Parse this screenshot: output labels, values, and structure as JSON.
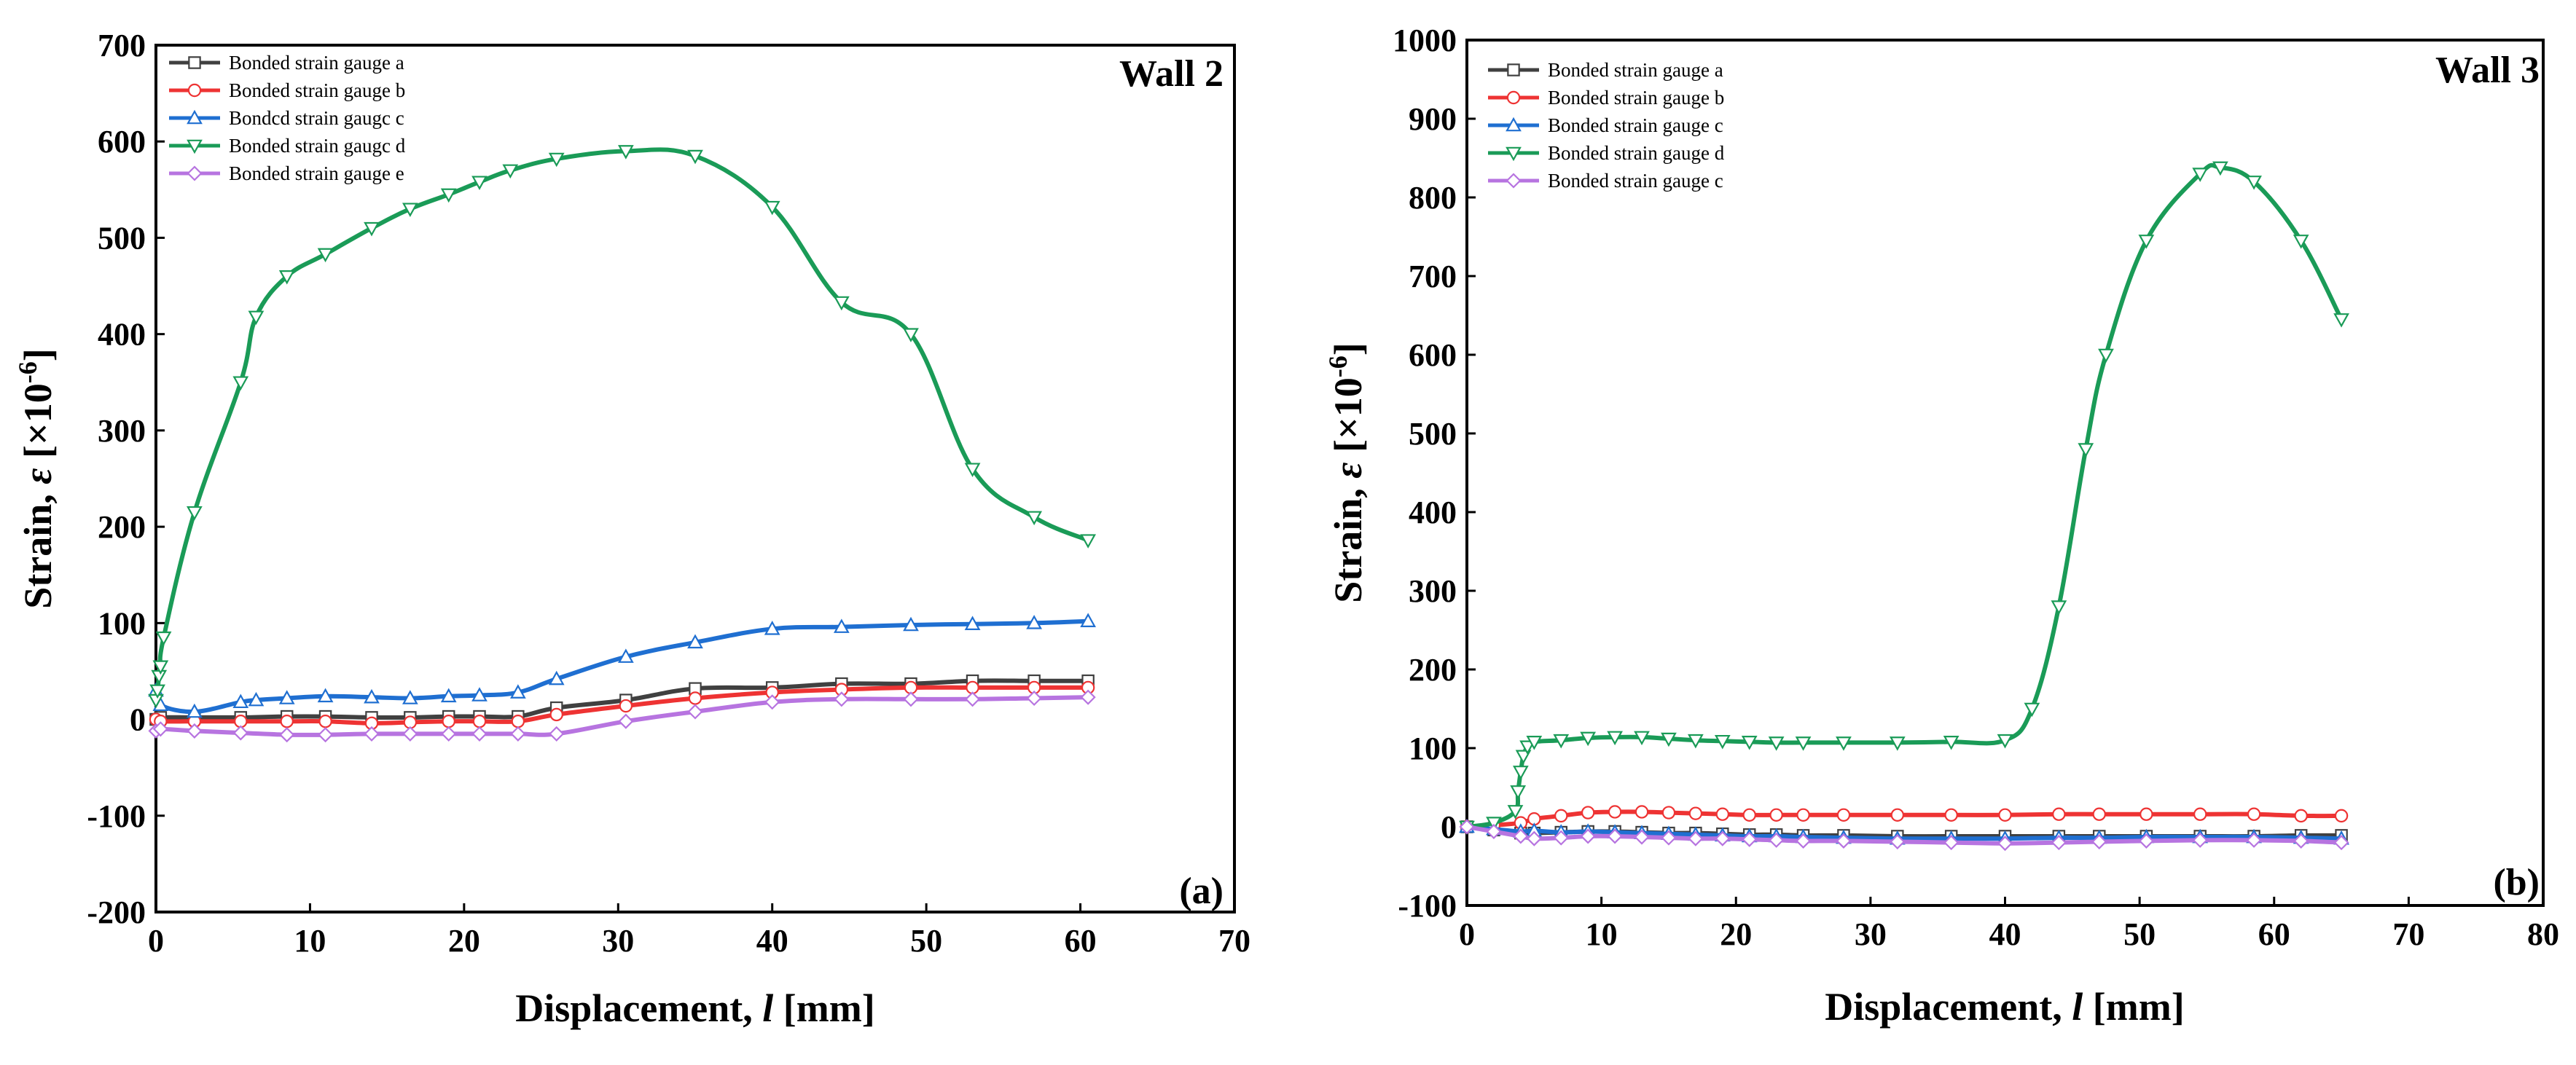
{
  "chart_data": [
    {
      "type": "line",
      "title": "Wall 2",
      "panel_label": "(a)",
      "xlabel_main": "Displacement, ",
      "xlabel_var": "l",
      "xlabel_unit": " [mm]",
      "ylabel_main": "Strain, ",
      "ylabel_var": "ε",
      "ylabel_unit_pre": " [×10",
      "ylabel_unit_exp": "-6",
      "ylabel_unit_post": "]",
      "xlim": [
        0,
        70
      ],
      "ylim": [
        -200,
        700
      ],
      "xticks": [
        0,
        10,
        20,
        30,
        40,
        50,
        60,
        70
      ],
      "yticks": [
        -200,
        -100,
        0,
        100,
        200,
        300,
        400,
        500,
        600,
        700
      ],
      "legend_position": "top-left",
      "series": [
        {
          "name": "Bonded strain gauge a",
          "color": "#404040",
          "marker": "square",
          "x": [
            0,
            0.3,
            2.5,
            5.5,
            8.5,
            11,
            14,
            16.5,
            19,
            21,
            23.5,
            26,
            30.5,
            35,
            40,
            44.5,
            49,
            53,
            57,
            60.5
          ],
          "y": [
            0,
            2,
            2,
            2,
            3,
            3,
            2,
            2,
            3,
            3,
            3,
            12,
            20,
            32,
            33,
            37,
            37,
            40,
            40,
            40
          ]
        },
        {
          "name": "Bonded strain gauge b",
          "color": "#ee3333",
          "marker": "circle",
          "x": [
            0,
            0.3,
            2.5,
            5.5,
            8.5,
            11,
            14,
            16.5,
            19,
            21,
            23.5,
            26,
            30.5,
            35,
            40,
            44.5,
            49,
            53,
            57,
            60.5
          ],
          "y": [
            0,
            -2,
            -2,
            -2,
            -2,
            -2,
            -4,
            -3,
            -2,
            -2,
            -2,
            5,
            14,
            22,
            28,
            31,
            33,
            33,
            33,
            33
          ]
        },
        {
          "name": "Bondcd strain gaugc c",
          "color": "#1f6fd1",
          "marker": "triangle-up",
          "x": [
            0,
            0.3,
            2.5,
            5.5,
            6.5,
            8.5,
            11,
            14,
            16.5,
            19,
            21,
            23.5,
            26,
            30.5,
            35,
            40,
            44.5,
            49,
            53,
            57,
            60.5
          ],
          "y": [
            30,
            15,
            8,
            18,
            20,
            22,
            24,
            23,
            22,
            24,
            25,
            28,
            42,
            65,
            80,
            94,
            96,
            98,
            99,
            100,
            102
          ]
        },
        {
          "name": "Bonded strain gaugc d",
          "color": "#1a9b57",
          "marker": "triangle-down",
          "x": [
            0,
            0.1,
            0.2,
            0.3,
            0.5,
            2.5,
            5.5,
            6.5,
            8.5,
            11,
            14,
            16.5,
            19,
            21,
            23,
            26,
            30.5,
            35,
            40,
            44.5,
            49,
            53,
            57,
            60.5
          ],
          "y": [
            20,
            30,
            45,
            55,
            85,
            215,
            350,
            418,
            460,
            483,
            510,
            530,
            545,
            558,
            570,
            582,
            590,
            585,
            532,
            433,
            400,
            260,
            210,
            186
          ]
        },
        {
          "name": "Bonded strain gauge e",
          "color": "#b774e0",
          "marker": "diamond",
          "x": [
            0,
            0.3,
            2.5,
            5.5,
            8.5,
            11,
            14,
            16.5,
            19,
            21,
            23.5,
            26,
            30.5,
            35,
            40,
            44.5,
            49,
            53,
            57,
            60.5
          ],
          "y": [
            -12,
            -10,
            -12,
            -14,
            -16,
            -16,
            -15,
            -15,
            -15,
            -15,
            -15,
            -15,
            -2,
            8,
            18,
            21,
            21,
            21,
            22,
            23
          ]
        }
      ]
    },
    {
      "type": "line",
      "title": "Wall 3",
      "panel_label": "(b)",
      "xlabel_main": "Displacement, ",
      "xlabel_var": "l",
      "xlabel_unit": " [mm]",
      "ylabel_main": "Strain, ",
      "ylabel_var": "ε",
      "ylabel_unit_pre": " [×10",
      "ylabel_unit_exp": "-6",
      "ylabel_unit_post": "]",
      "xlim": [
        0,
        80
      ],
      "ylim": [
        -100,
        1000
      ],
      "xticks": [
        0,
        10,
        20,
        30,
        40,
        50,
        60,
        70,
        80
      ],
      "yticks": [
        -100,
        0,
        100,
        200,
        300,
        400,
        500,
        600,
        700,
        800,
        900,
        1000
      ],
      "legend_position": "top-left",
      "series": [
        {
          "name": "Bonded strain gauge a",
          "color": "#404040",
          "marker": "square",
          "x": [
            0,
            2,
            4,
            5,
            7,
            9,
            11,
            13,
            15,
            17,
            19,
            21,
            23,
            25,
            28,
            32,
            36,
            40,
            44,
            47,
            50.5,
            54.5,
            58.5,
            62,
            65
          ],
          "y": [
            0,
            -4,
            -8,
            -8,
            -7,
            -6,
            -6,
            -7,
            -8,
            -8,
            -9,
            -10,
            -10,
            -11,
            -11,
            -12,
            -12,
            -12,
            -12,
            -12,
            -12,
            -12,
            -12,
            -11,
            -11
          ]
        },
        {
          "name": "Bonded strain gauge b",
          "color": "#ee3333",
          "marker": "circle",
          "x": [
            0,
            2,
            4,
            5,
            7,
            9,
            11,
            13,
            15,
            17,
            19,
            21,
            23,
            25,
            28,
            32,
            36,
            40,
            44,
            47,
            50.5,
            54.5,
            58.5,
            62,
            65
          ],
          "y": [
            0,
            2,
            5,
            10,
            14,
            18,
            19,
            19,
            18,
            17,
            16,
            15,
            15,
            15,
            15,
            15,
            15,
            15,
            16,
            16,
            16,
            16,
            16,
            14,
            14
          ]
        },
        {
          "name": "Bonded strain gauge c",
          "color": "#1f6fd1",
          "marker": "triangle-up",
          "x": [
            0,
            2,
            4,
            5,
            7,
            9,
            11,
            13,
            15,
            17,
            19,
            21,
            23,
            25,
            28,
            32,
            36,
            40,
            44,
            47,
            50.5,
            54.5,
            58.5,
            62,
            65
          ],
          "y": [
            0,
            -3,
            -6,
            -5,
            -7,
            -6,
            -7,
            -8,
            -9,
            -10,
            -11,
            -12,
            -12,
            -13,
            -14,
            -15,
            -15,
            -15,
            -14,
            -14,
            -13,
            -13,
            -13,
            -14,
            -15
          ]
        },
        {
          "name": "Bonded strain gauge d",
          "color": "#1a9b57",
          "marker": "triangle-down",
          "x": [
            0,
            2,
            3.6,
            3.8,
            4.0,
            4.2,
            4.5,
            5,
            7,
            9,
            11,
            13,
            15,
            17,
            19,
            21,
            23,
            25,
            28,
            32,
            36,
            40,
            42,
            44,
            46,
            47.5,
            50.5,
            54.5,
            56,
            58.5,
            62,
            65
          ],
          "y": [
            0,
            5,
            20,
            45,
            70,
            90,
            102,
            108,
            110,
            113,
            114,
            114,
            112,
            110,
            109,
            108,
            107,
            107,
            107,
            107,
            108,
            110,
            150,
            280,
            480,
            600,
            745,
            830,
            838,
            820,
            745,
            645
          ]
        },
        {
          "name": "Bonded strain gauge c",
          "color": "#b774e0",
          "marker": "diamond",
          "x": [
            0,
            2,
            4,
            5,
            7,
            9,
            11,
            13,
            15,
            17,
            19,
            21,
            23,
            25,
            28,
            32,
            36,
            40,
            44,
            47,
            50.5,
            54.5,
            58.5,
            62,
            65
          ],
          "y": [
            0,
            -6,
            -12,
            -15,
            -14,
            -12,
            -12,
            -13,
            -14,
            -15,
            -15,
            -16,
            -17,
            -18,
            -18,
            -19,
            -20,
            -21,
            -20,
            -19,
            -18,
            -17,
            -17,
            -18,
            -20
          ]
        }
      ]
    }
  ]
}
